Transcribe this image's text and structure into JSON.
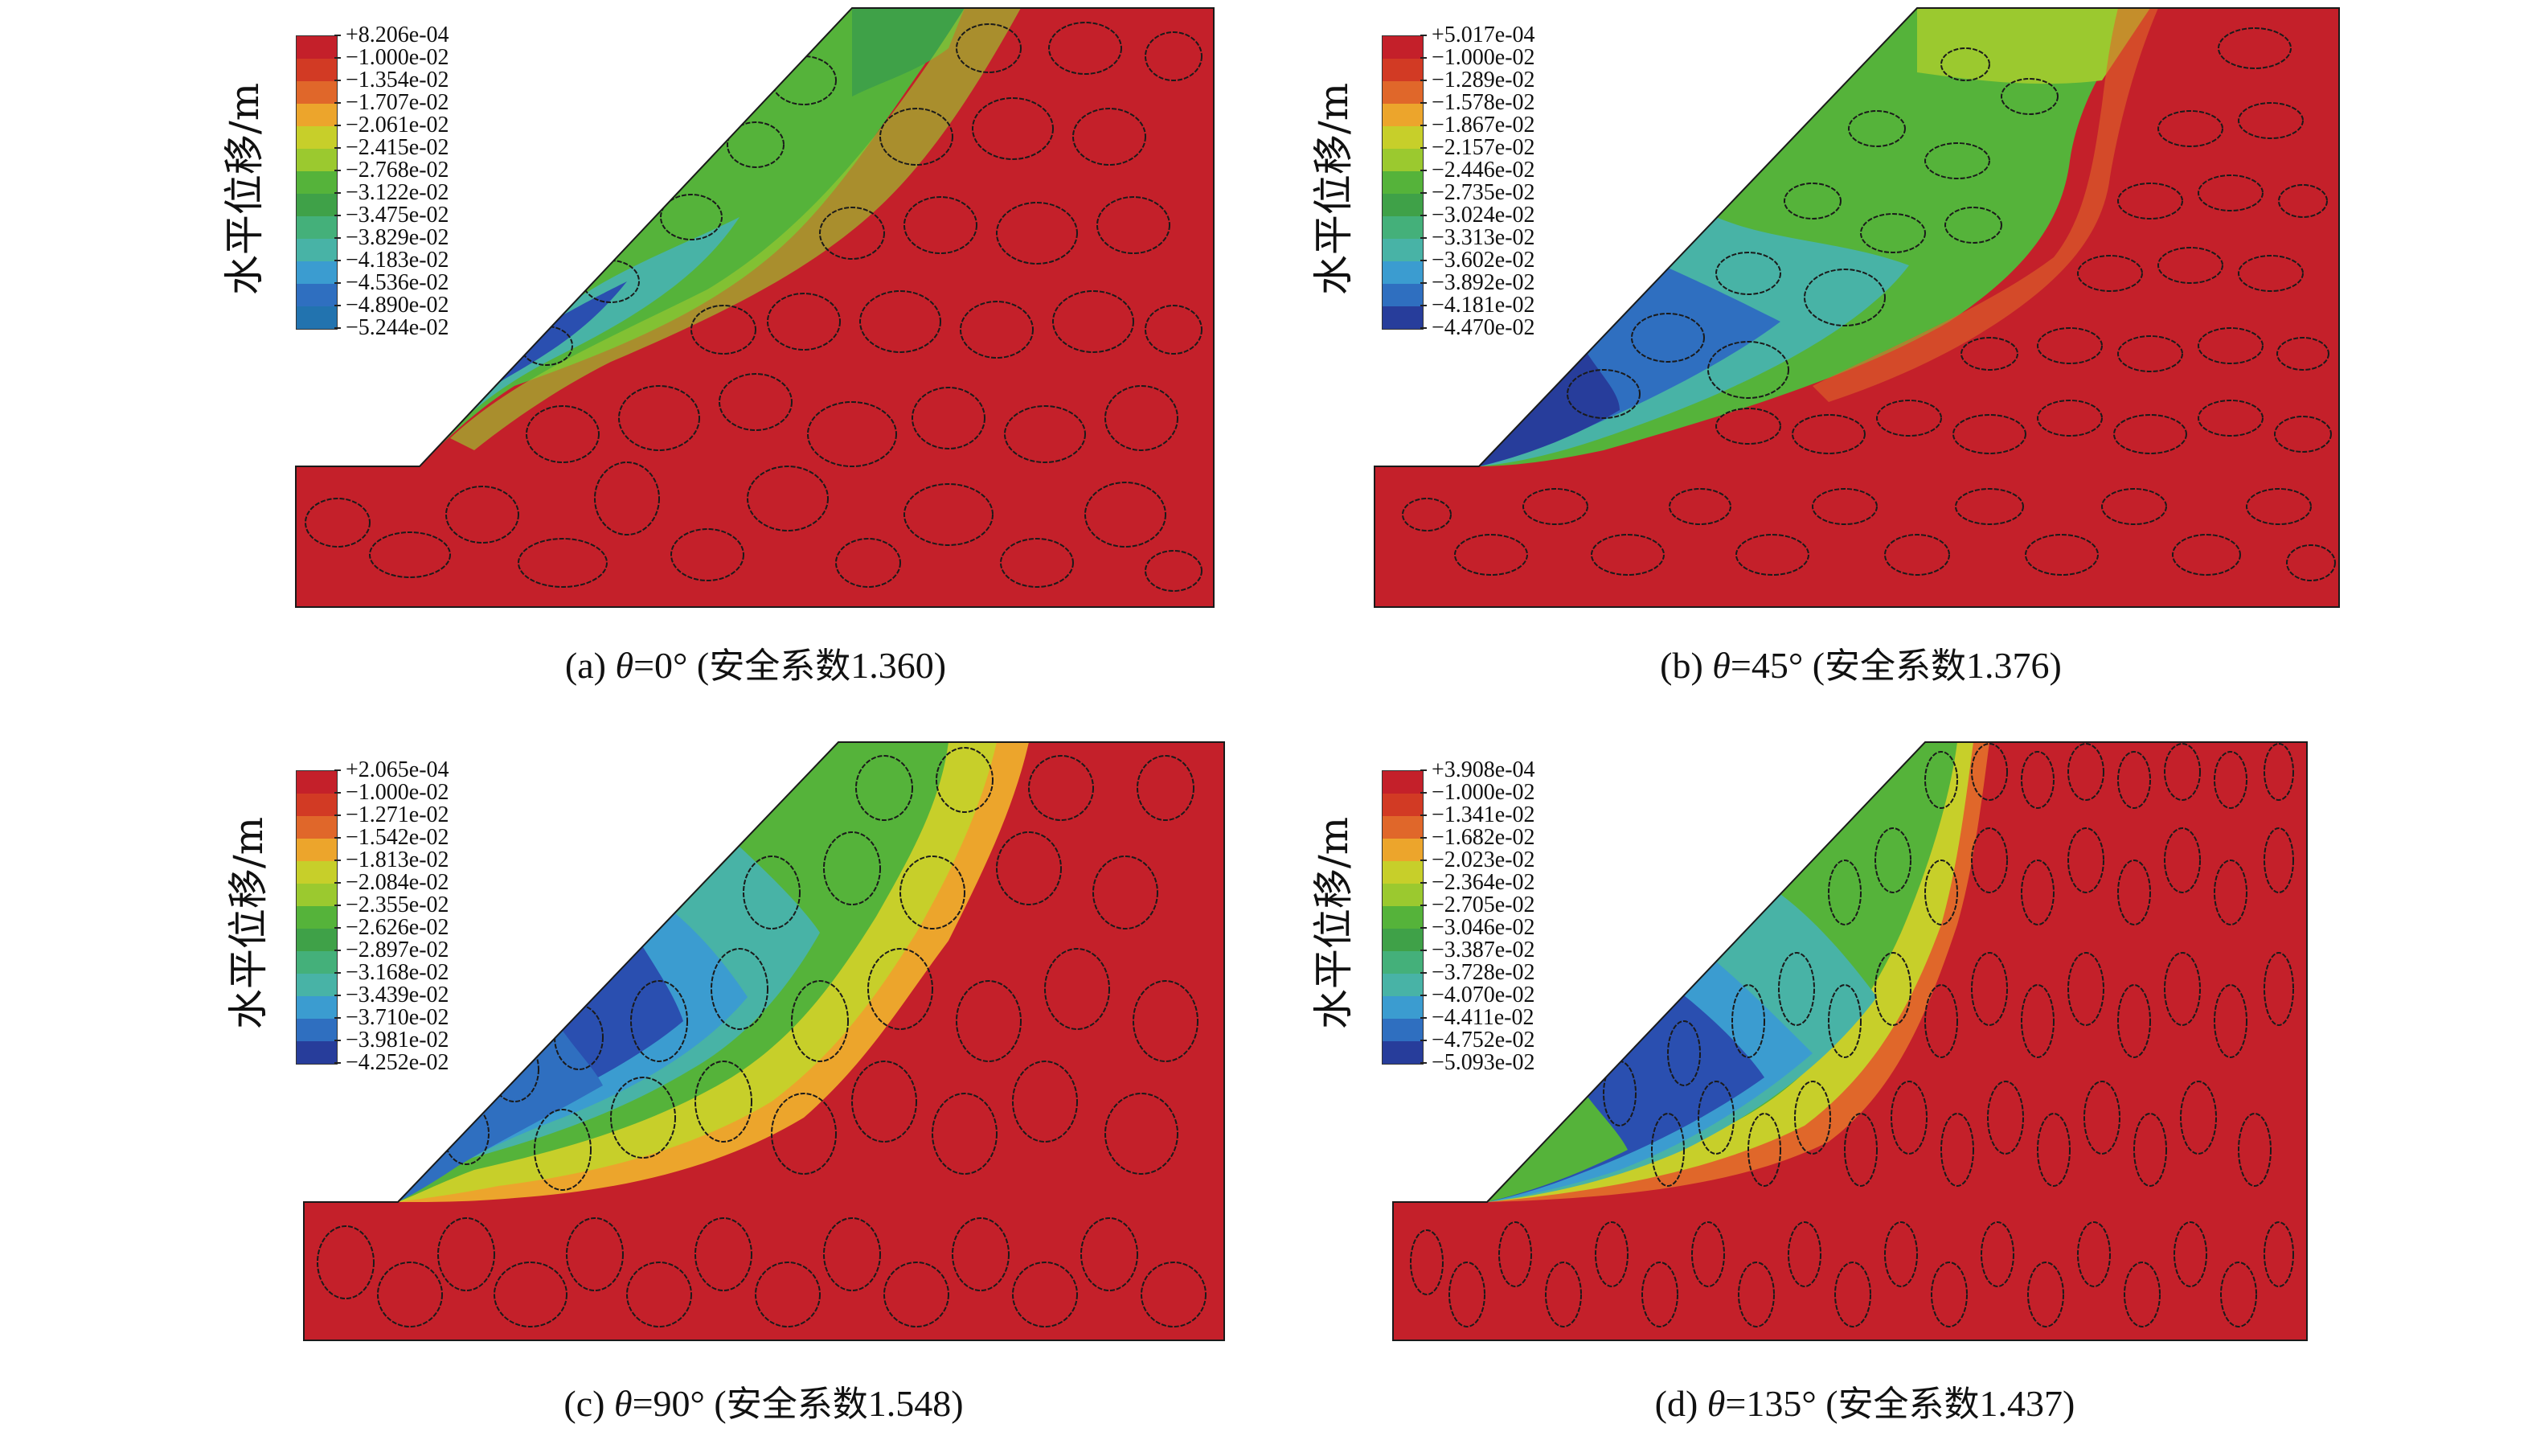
{
  "figure": {
    "panels": [
      {
        "label": "(a)",
        "theta": "θ",
        "angle": "=0°",
        "cjk": "安全系数",
        "factor": "1.360)",
        "ylabel": "水平位移/m",
        "colorbar": [
          "+8.206e-04",
          "−1.000e-02",
          "−1.354e-02",
          "−1.707e-02",
          "−2.061e-02",
          "−2.415e-02",
          "−2.768e-02",
          "−3.122e-02",
          "−3.475e-02",
          "−3.829e-02",
          "−4.183e-02",
          "−4.536e-02",
          "−4.890e-02",
          "−5.244e-02"
        ]
      },
      {
        "label": "(b)",
        "theta": "θ",
        "angle": "=45°",
        "cjk": "安全系数",
        "factor": "1.376)",
        "ylabel": "水平位移/m",
        "colorbar": [
          "+5.017e-04",
          "−1.000e-02",
          "−1.289e-02",
          "−1.578e-02",
          "−1.867e-02",
          "−2.157e-02",
          "−2.446e-02",
          "−2.735e-02",
          "−3.024e-02",
          "−3.313e-02",
          "−3.602e-02",
          "−3.892e-02",
          "−4.181e-02",
          "−4.470e-02"
        ]
      },
      {
        "label": "(c)",
        "theta": "θ",
        "angle": "=90°",
        "cjk": "安全系数",
        "factor": "1.548)",
        "ylabel": "水平位移/m",
        "colorbar": [
          "+2.065e-04",
          "−1.000e-02",
          "−1.271e-02",
          "−1.542e-02",
          "−1.813e-02",
          "−2.084e-02",
          "−2.355e-02",
          "−2.626e-02",
          "−2.897e-02",
          "−3.168e-02",
          "−3.439e-02",
          "−3.710e-02",
          "−3.981e-02",
          "−4.252e-02"
        ]
      },
      {
        "label": "(d)",
        "theta": "θ",
        "angle": "=135°",
        "cjk": "安全系数",
        "factor": "1.437)",
        "ylabel": "水平位移/m",
        "colorbar": [
          "+3.908e-04",
          "−1.000e-02",
          "−1.341e-02",
          "−1.682e-02",
          "−2.023e-02",
          "−2.364e-02",
          "−2.705e-02",
          "−3.046e-02",
          "−3.387e-02",
          "−3.728e-02",
          "−4.070e-02",
          "−4.411e-02",
          "−4.752e-02",
          "−5.093e-02"
        ]
      }
    ],
    "colors": {
      "stable": "#c4202a",
      "scale": [
        "#c4202a",
        "#d23a24",
        "#e0672a",
        "#eca52c",
        "#c7cf2a",
        "#9bc92f",
        "#55b33a",
        "#3fa148",
        "#44b07a",
        "#48b3a6",
        "#3b9cd0",
        "#2f6fc0",
        "#2a4fb0",
        "#273d9b"
      ],
      "outline": "#1a1a1a"
    }
  }
}
